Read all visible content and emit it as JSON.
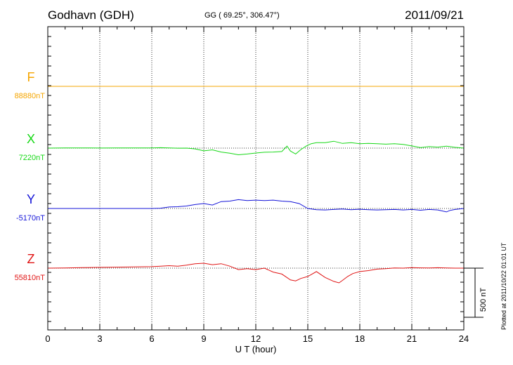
{
  "header": {
    "station": "Godhavn (GDH)",
    "coords": "GG ( 69.25°, 306.47°)",
    "date": "2011/09/21"
  },
  "footer": {
    "plotted": "Plotted at 2011/10/22 01:01  UT"
  },
  "chart_data": {
    "type": "line",
    "title": "Godhavn (GDH)",
    "xlabel": "U T (hour)",
    "xlim": [
      0,
      24
    ],
    "xticks": [
      0,
      3,
      6,
      9,
      12,
      15,
      18,
      21,
      24
    ],
    "x_tick_labels": [
      "0",
      "3",
      "6",
      "9",
      "12",
      "15",
      "18",
      "21",
      "24"
    ],
    "grid": true,
    "scale_bar_label": "500 nT",
    "scale_bar_nT": 500,
    "series": [
      {
        "name": "F",
        "baseline_label": "88880nT",
        "color": "#f5a500",
        "x": [
          0,
          24
        ],
        "y": [
          0,
          0
        ]
      },
      {
        "name": "X",
        "baseline_label": "7220nT",
        "color": "#16d816",
        "x": [
          0,
          1,
          2,
          3,
          4,
          5,
          6,
          6.5,
          7,
          7.5,
          8,
          8.5,
          9,
          9.5,
          10,
          10.5,
          11,
          11.5,
          12,
          12.5,
          13,
          13.5,
          13.8,
          14,
          14.3,
          14.6,
          14.9,
          15.2,
          15.5,
          16,
          16.5,
          17,
          17.5,
          18,
          18.5,
          19,
          19.5,
          20,
          20.5,
          21,
          21.5,
          22,
          22.5,
          23,
          23.5,
          24
        ],
        "y": [
          0,
          2,
          2,
          1,
          2,
          2,
          2,
          4,
          2,
          -1,
          0,
          -8,
          -28,
          -18,
          -40,
          -52,
          -68,
          -60,
          -50,
          -42,
          -40,
          -35,
          20,
          -30,
          -60,
          -15,
          20,
          45,
          55,
          55,
          70,
          48,
          55,
          45,
          48,
          45,
          40,
          45,
          38,
          22,
          5,
          15,
          10,
          20,
          8,
          0
        ]
      },
      {
        "name": "Y",
        "baseline_label": "-5170nT",
        "color": "#1414d8",
        "x": [
          0,
          1,
          2,
          3,
          4,
          5,
          6,
          6.5,
          7,
          7.5,
          8,
          8.5,
          9,
          9.5,
          10,
          10.5,
          11,
          11.5,
          12,
          12.5,
          13,
          13.5,
          14,
          14.5,
          15,
          15.5,
          16,
          16.5,
          17,
          17.5,
          18,
          18.5,
          19,
          19.5,
          20,
          20.5,
          21,
          21.5,
          22,
          22.5,
          23,
          23.2,
          23.5,
          24
        ],
        "y": [
          0,
          0,
          0,
          0,
          0,
          0,
          0,
          3,
          15,
          18,
          25,
          40,
          50,
          35,
          70,
          75,
          90,
          80,
          85,
          80,
          85,
          75,
          70,
          50,
          0,
          -12,
          -15,
          -10,
          -5,
          -12,
          -8,
          -12,
          -15,
          -12,
          -10,
          -15,
          -10,
          -18,
          -10,
          -15,
          -35,
          -20,
          -10,
          0
        ]
      },
      {
        "name": "Z",
        "baseline_label": "55810nT",
        "color": "#e01414",
        "x": [
          0,
          1,
          2,
          3,
          4,
          5,
          6,
          6.5,
          7,
          7.5,
          8,
          8.5,
          9,
          9.5,
          10,
          10.5,
          11,
          11.5,
          12,
          12.5,
          13,
          13.5,
          14,
          14.3,
          14.6,
          15,
          15.5,
          16,
          16.5,
          16.8,
          17,
          17.3,
          17.6,
          18,
          18.5,
          19,
          19.5,
          20,
          20.5,
          21,
          21.5,
          22,
          22.5,
          23,
          23.5,
          24
        ],
        "y": [
          0,
          2,
          5,
          8,
          10,
          12,
          15,
          20,
          25,
          20,
          30,
          45,
          50,
          35,
          45,
          20,
          -15,
          -5,
          -15,
          0,
          -40,
          -60,
          -120,
          -130,
          -105,
          -85,
          -35,
          -95,
          -135,
          -150,
          -125,
          -85,
          -55,
          -35,
          -25,
          -10,
          -5,
          2,
          0,
          5,
          3,
          2,
          4,
          2,
          0,
          0
        ]
      }
    ]
  }
}
